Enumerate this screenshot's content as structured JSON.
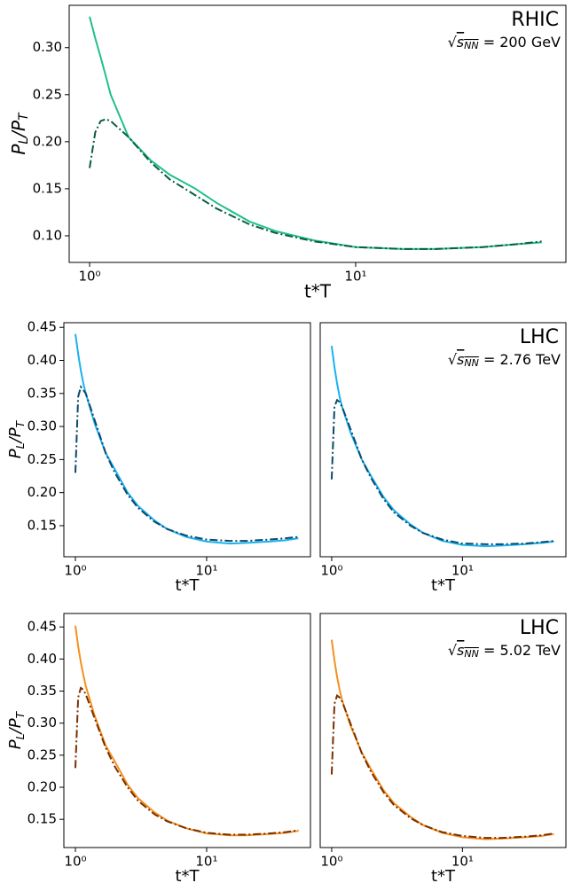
{
  "chart_data": [
    {
      "type": "line",
      "annotation": "RHIC",
      "energy": {
        "root": "√",
        "var": "s",
        "sub": "NN",
        "value": " = 200 GeV"
      },
      "xlabel": "t*T",
      "ylabel": {
        "main": "P",
        "sub": "L",
        "main2": "/P",
        "sub2": "T"
      },
      "log_x": true,
      "xlim": [
        0.838,
        61.7
      ],
      "xticks": [
        {
          "value": 1,
          "label": "10⁰"
        },
        {
          "value": 10,
          "label": "10¹"
        }
      ],
      "ylim": [
        0.0717,
        0.345
      ],
      "yticks": [
        {
          "value": 0.1,
          "label": "0.10"
        },
        0.15,
        {
          "value": 0.2,
          "label": "0.20"
        },
        0.25,
        {
          "value": 0.3,
          "label": "0.30"
        }
      ],
      "x": [
        1,
        1.05,
        1.1,
        1.15,
        1.2,
        1.4,
        1.7,
        2,
        2.5,
        3,
        4,
        5,
        7,
        10,
        15,
        20,
        30,
        40,
        50
      ],
      "series": [
        {
          "color": "#1fbf8f",
          "style": "solid",
          "values": [
            0.333,
            0.31,
            0.29,
            0.27,
            0.25,
            0.205,
            0.18,
            0.165,
            0.15,
            0.135,
            0.115,
            0.105,
            0.095,
            0.088,
            0.086,
            0.086,
            0.088,
            0.091,
            0.093
          ]
        },
        {
          "color": "#0b5e3f",
          "style": "dashdot",
          "values": [
            0.172,
            0.21,
            0.222,
            0.224,
            0.222,
            0.205,
            0.178,
            0.16,
            0.143,
            0.129,
            0.112,
            0.103,
            0.094,
            0.088,
            0.086,
            0.086,
            0.088,
            0.091,
            0.094
          ]
        }
      ]
    },
    {
      "type": "line",
      "xlabel": "t*T",
      "ylabel": {
        "main": "P",
        "sub": "L",
        "main2": "/P",
        "sub2": "T"
      },
      "log_x": true,
      "xlim": [
        0.817,
        61.8
      ],
      "xticks": [
        {
          "value": 1,
          "label": "10⁰"
        },
        {
          "value": 10,
          "label": "10¹"
        }
      ],
      "ylim": [
        0.103,
        0.457
      ],
      "yticks": [
        0.15,
        {
          "value": 0.2,
          "label": "0.20"
        },
        0.25,
        {
          "value": 0.3,
          "label": "0.30"
        },
        0.35,
        {
          "value": 0.4,
          "label": "0.40"
        },
        0.45
      ],
      "x": [
        1,
        1.05,
        1.1,
        1.15,
        1.2,
        1.4,
        1.7,
        2,
        2.5,
        3,
        4,
        5,
        7,
        10,
        15,
        20,
        30,
        40,
        50
      ],
      "series": [
        {
          "color": "#1ab2f0",
          "style": "solid",
          "values": [
            0.44,
            0.41,
            0.385,
            0.365,
            0.35,
            0.305,
            0.26,
            0.235,
            0.2,
            0.18,
            0.158,
            0.145,
            0.133,
            0.126,
            0.123,
            0.124,
            0.126,
            0.128,
            0.131
          ]
        },
        {
          "color": "#0b4a6b",
          "style": "dashdot",
          "values": [
            0.23,
            0.345,
            0.36,
            0.355,
            0.35,
            0.31,
            0.26,
            0.23,
            0.197,
            0.177,
            0.156,
            0.145,
            0.135,
            0.129,
            0.127,
            0.127,
            0.129,
            0.131,
            0.133
          ]
        }
      ]
    },
    {
      "type": "line",
      "annotation": "LHC",
      "energy": {
        "root": "√",
        "var": "s",
        "sub": "NN",
        "value": " = 2.76 TeV"
      },
      "xlabel": "t*T",
      "log_x": true,
      "xlim": [
        0.817,
        61.8
      ],
      "xticks": [
        {
          "value": 1,
          "label": "10⁰"
        },
        {
          "value": 10,
          "label": "10¹"
        }
      ],
      "ylim": [
        0.103,
        0.457
      ],
      "x": [
        1,
        1.05,
        1.1,
        1.15,
        1.2,
        1.4,
        1.7,
        2,
        2.5,
        3,
        4,
        5,
        7,
        10,
        15,
        20,
        30,
        40,
        50
      ],
      "series": [
        {
          "color": "#1ab2f0",
          "style": "solid",
          "values": [
            0.422,
            0.39,
            0.365,
            0.345,
            0.33,
            0.29,
            0.25,
            0.225,
            0.193,
            0.173,
            0.152,
            0.139,
            0.127,
            0.121,
            0.119,
            0.12,
            0.122,
            0.124,
            0.126
          ]
        },
        {
          "color": "#0b4a6b",
          "style": "dashdot",
          "values": [
            0.22,
            0.33,
            0.34,
            0.337,
            0.33,
            0.295,
            0.25,
            0.222,
            0.19,
            0.17,
            0.15,
            0.139,
            0.129,
            0.123,
            0.122,
            0.122,
            0.123,
            0.125,
            0.127
          ]
        }
      ]
    },
    {
      "type": "line",
      "xlabel": "t*T",
      "ylabel": {
        "main": "P",
        "sub": "L",
        "main2": "/P",
        "sub2": "T"
      },
      "log_x": true,
      "xlim": [
        0.817,
        61.8
      ],
      "xticks": [
        {
          "value": 1,
          "label": "10⁰"
        },
        {
          "value": 10,
          "label": "10¹"
        }
      ],
      "ylim": [
        0.106,
        0.471
      ],
      "yticks": [
        0.15,
        {
          "value": 0.2,
          "label": "0.20"
        },
        0.25,
        {
          "value": 0.3,
          "label": "0.30"
        },
        0.35,
        {
          "value": 0.4,
          "label": "0.40"
        },
        0.45
      ],
      "x": [
        1,
        1.05,
        1.1,
        1.15,
        1.2,
        1.4,
        1.7,
        2,
        2.5,
        3,
        4,
        5,
        7,
        10,
        15,
        20,
        30,
        40,
        50
      ],
      "series": [
        {
          "color": "#f5901e",
          "style": "solid",
          "values": [
            0.452,
            0.42,
            0.395,
            0.375,
            0.358,
            0.312,
            0.265,
            0.24,
            0.204,
            0.183,
            0.161,
            0.148,
            0.136,
            0.128,
            0.125,
            0.125,
            0.127,
            0.129,
            0.132
          ]
        },
        {
          "color": "#7a3000",
          "style": "dashdot",
          "values": [
            0.23,
            0.34,
            0.355,
            0.352,
            0.345,
            0.308,
            0.262,
            0.232,
            0.2,
            0.179,
            0.158,
            0.147,
            0.136,
            0.129,
            0.126,
            0.126,
            0.128,
            0.13,
            0.133
          ]
        }
      ]
    },
    {
      "type": "line",
      "annotation": "LHC",
      "energy": {
        "root": "√",
        "var": "s",
        "sub": "NN",
        "value": " = 5.02 TeV"
      },
      "xlabel": "t*T",
      "log_x": true,
      "xlim": [
        0.817,
        61.8
      ],
      "xticks": [
        {
          "value": 1,
          "label": "10⁰"
        },
        {
          "value": 10,
          "label": "10¹"
        }
      ],
      "ylim": [
        0.106,
        0.471
      ],
      "x": [
        1,
        1.05,
        1.1,
        1.15,
        1.2,
        1.4,
        1.7,
        2,
        2.5,
        3,
        4,
        5,
        7,
        10,
        15,
        20,
        30,
        40,
        50
      ],
      "series": [
        {
          "color": "#f5901e",
          "style": "solid",
          "values": [
            0.43,
            0.398,
            0.372,
            0.352,
            0.336,
            0.295,
            0.254,
            0.228,
            0.195,
            0.175,
            0.154,
            0.141,
            0.129,
            0.122,
            0.119,
            0.12,
            0.122,
            0.124,
            0.127
          ]
        },
        {
          "color": "#7a3000",
          "style": "dashdot",
          "values": [
            0.22,
            0.33,
            0.343,
            0.34,
            0.334,
            0.298,
            0.253,
            0.224,
            0.192,
            0.172,
            0.152,
            0.141,
            0.13,
            0.124,
            0.121,
            0.121,
            0.123,
            0.125,
            0.128
          ]
        }
      ]
    }
  ]
}
